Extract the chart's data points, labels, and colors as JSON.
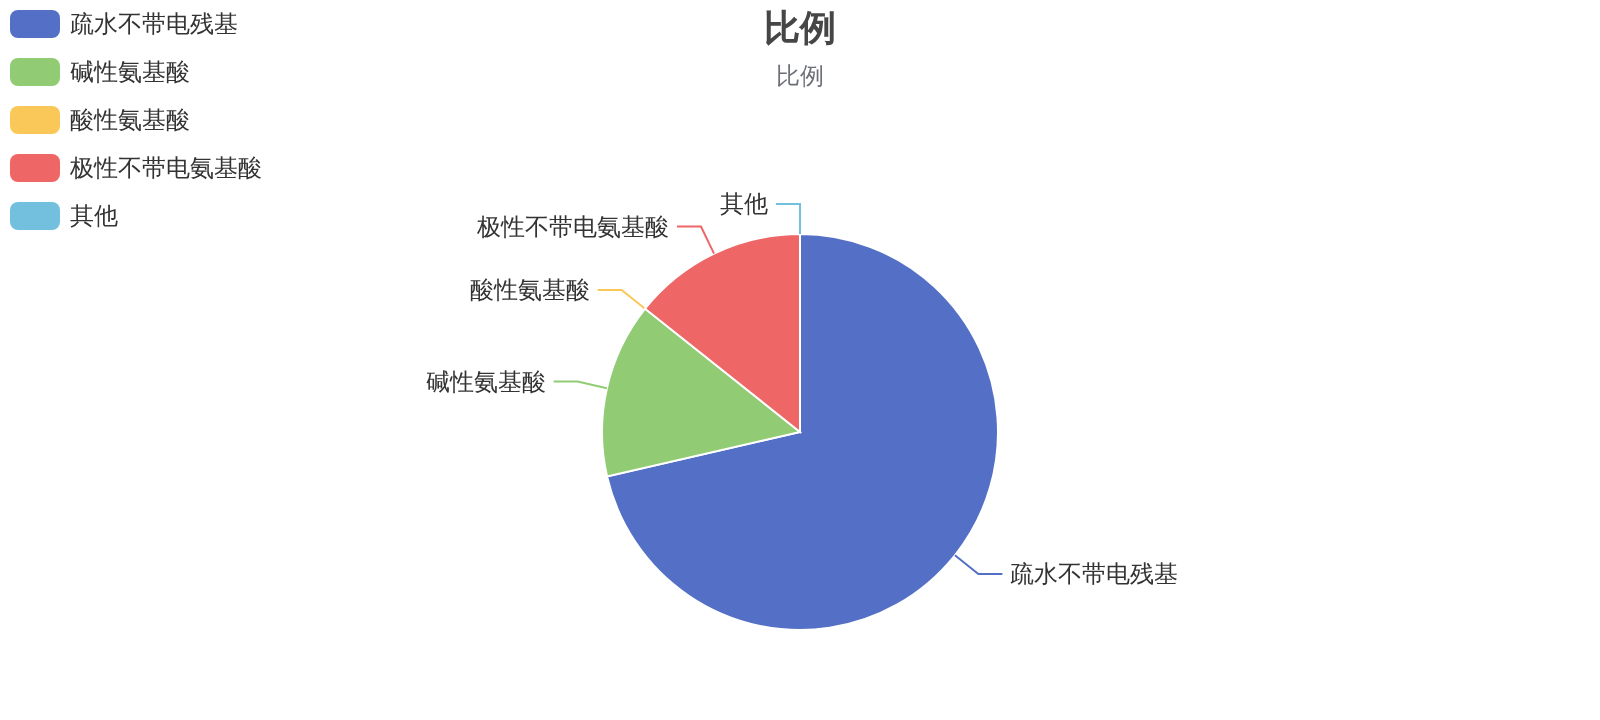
{
  "chart_data": {
    "type": "pie",
    "title": "比例",
    "subtitle": "比例",
    "categories": [
      "疏水不带电残基",
      "碱性氨基酸",
      "酸性氨基酸",
      "极性不带电氨基酸",
      "其他"
    ],
    "values": [
      71.4,
      14.3,
      0,
      14.3,
      0
    ],
    "colors": [
      "#5470c6",
      "#91cc75",
      "#fac858",
      "#ee6666",
      "#73c0de"
    ],
    "legend": "top left"
  }
}
